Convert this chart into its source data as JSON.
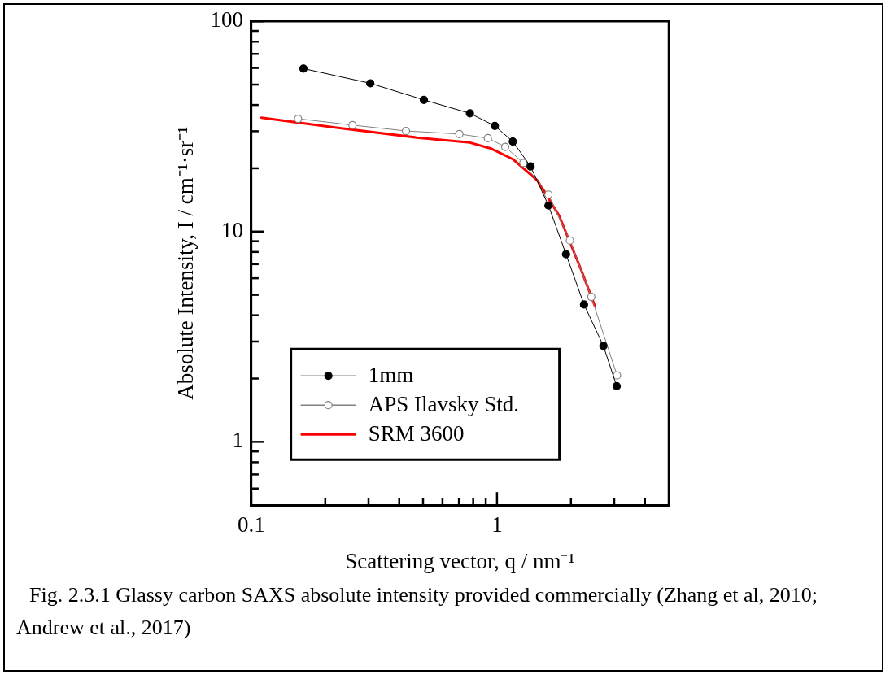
{
  "chart_data": {
    "type": "line",
    "xlabel": "Scattering vector, q / nm⁻¹",
    "ylabel": "Absolute Intensity, I / cm⁻¹·sr⁻¹",
    "log": "xy",
    "grid": false,
    "legend": "bottom left",
    "line_style": "solid",
    "xlim": [
      0.1,
      5
    ],
    "xticks": [
      0.1,
      {
        "value": 0.2,
        "label": null
      },
      {
        "value": 0.3,
        "label": null
      },
      {
        "value": 0.4,
        "label": null
      },
      {
        "value": 0.5,
        "label": null
      },
      {
        "value": 0.6,
        "label": null
      },
      {
        "value": 0.7,
        "label": null
      },
      {
        "value": 0.8,
        "label": null
      },
      {
        "value": 0.9,
        "label": null
      },
      1,
      {
        "value": 2,
        "label": null
      },
      {
        "value": 3,
        "label": null
      },
      {
        "value": 4,
        "label": null
      }
    ],
    "ylim": [
      0.5,
      100
    ],
    "yticks": [
      {
        "value": 0.6,
        "label": null
      },
      {
        "value": 0.7,
        "label": null
      },
      {
        "value": 0.8,
        "label": null
      },
      {
        "value": 0.9,
        "label": null
      },
      1,
      {
        "value": 2,
        "label": null
      },
      {
        "value": 3,
        "label": null
      },
      {
        "value": 4,
        "label": null
      },
      {
        "value": 5,
        "label": null
      },
      {
        "value": 6,
        "label": null
      },
      {
        "value": 7,
        "label": null
      },
      {
        "value": 8,
        "label": null
      },
      {
        "value": 9,
        "label": null
      },
      10,
      {
        "value": 20,
        "label": null
      },
      {
        "value": 30,
        "label": null
      },
      {
        "value": 40,
        "label": null
      },
      {
        "value": 50,
        "label": null
      },
      {
        "value": 60,
        "label": null
      },
      {
        "value": 70,
        "label": null
      },
      {
        "value": 80,
        "label": null
      },
      {
        "value": 90,
        "label": null
      },
      100
    ],
    "series": [
      {
        "name": "1mm",
        "color": "#000000",
        "marker": "circle",
        "x": [
          0.163,
          0.305,
          0.504,
          0.776,
          0.98,
          1.16,
          1.37,
          1.62,
          1.91,
          2.26,
          2.71,
          3.07
        ],
        "values": [
          59.6,
          50.7,
          42.3,
          36.5,
          31.8,
          26.8,
          20.4,
          13.3,
          7.8,
          4.5,
          2.86,
          1.84
        ]
      },
      {
        "name": "APS Ilavsky Std.",
        "color": "#808080",
        "marker": "circle",
        "x": [
          0.155,
          0.258,
          0.426,
          0.703,
          0.918,
          1.08,
          1.28,
          1.62,
          1.98,
          2.42,
          3.08
        ],
        "values": [
          34.4,
          32.1,
          30.1,
          29.1,
          27.8,
          25.3,
          21.2,
          15.0,
          9.07,
          4.89,
          2.07
        ]
      },
      {
        "name": "SRM 3600",
        "color": "#ff0000",
        "marker": "none",
        "x": [
          0.11,
          0.219,
          0.471,
          0.776,
          0.948,
          1.16,
          1.46,
          1.79,
          2.19,
          2.5
        ],
        "values": [
          34.8,
          31.3,
          28.0,
          26.5,
          24.8,
          22.1,
          17.5,
          11.9,
          6.67,
          4.44
        ]
      }
    ],
    "annotations": [
      "Fig. 2.3.1 Glassy carbon SAXS absolute intensity provided commercially (Zhang et al, 2010; Andrew et al., 2017)"
    ]
  }
}
